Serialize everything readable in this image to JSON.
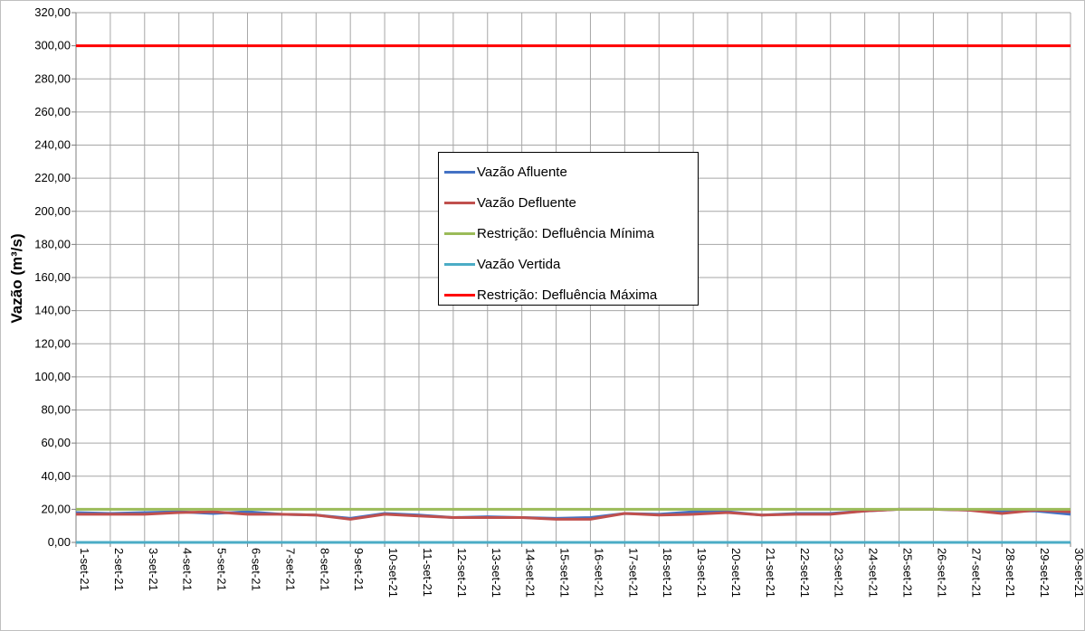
{
  "chart_data": {
    "type": "line",
    "title": "",
    "xlabel": "",
    "ylabel": "Vazão (m³/s)",
    "ylim": [
      0,
      320
    ],
    "ytick_step": 20,
    "ytick_labels": [
      "0,00",
      "20,00",
      "40,00",
      "60,00",
      "80,00",
      "100,00",
      "120,00",
      "140,00",
      "160,00",
      "180,00",
      "200,00",
      "220,00",
      "240,00",
      "260,00",
      "280,00",
      "300,00",
      "320,00"
    ],
    "grid": true,
    "legend_position": "center",
    "categories": [
      "1-set-21",
      "2-set-21",
      "3-set-21",
      "4-set-21",
      "5-set-21",
      "6-set-21",
      "7-set-21",
      "8-set-21",
      "9-set-21",
      "10-set-21",
      "11-set-21",
      "12-set-21",
      "13-set-21",
      "14-set-21",
      "15-set-21",
      "16-set-21",
      "17-set-21",
      "18-set-21",
      "19-set-21",
      "20-set-21",
      "21-set-21",
      "22-set-21",
      "23-set-21",
      "24-set-21",
      "25-set-21",
      "26-set-21",
      "27-set-21",
      "28-set-21",
      "29-set-21",
      "30-set-21"
    ],
    "series": [
      {
        "name": "Vazão Afluente",
        "color": "#4472c4",
        "values": [
          18,
          17.5,
          18,
          18.5,
          17.5,
          18.5,
          17,
          16.5,
          14.5,
          17.5,
          16.5,
          15,
          15.5,
          15,
          14.5,
          15,
          17.5,
          17,
          18.5,
          18.5,
          16.5,
          17.5,
          17.5,
          19,
          20,
          20,
          19.5,
          19,
          19,
          17
        ]
      },
      {
        "name": "Vazão Defluente",
        "color": "#c0504d",
        "values": [
          17,
          17,
          17,
          18,
          18.5,
          17,
          17,
          16.5,
          14,
          17,
          16,
          15,
          15,
          15,
          14,
          14,
          17.5,
          16.5,
          17,
          18,
          16.5,
          17,
          17,
          19,
          20,
          20,
          19.5,
          17.5,
          19.5,
          18.5
        ]
      },
      {
        "name": "Restrição: Defluência Mínima",
        "color": "#9bbb59",
        "values": [
          20,
          20,
          20,
          20,
          20,
          20,
          20,
          20,
          20,
          20,
          20,
          20,
          20,
          20,
          20,
          20,
          20,
          20,
          20,
          20,
          20,
          20,
          20,
          20,
          20,
          20,
          20,
          20,
          20,
          20
        ]
      },
      {
        "name": "Vazão Vertida",
        "color": "#4bacc6",
        "values": [
          0,
          0,
          0,
          0,
          0,
          0,
          0,
          0,
          0,
          0,
          0,
          0,
          0,
          0,
          0,
          0,
          0,
          0,
          0,
          0,
          0,
          0,
          0,
          0,
          0,
          0,
          0,
          0,
          0,
          0
        ]
      },
      {
        "name": "Restrição: Defluência Máxima",
        "color": "#ff0000",
        "values": [
          300,
          300,
          300,
          300,
          300,
          300,
          300,
          300,
          300,
          300,
          300,
          300,
          300,
          300,
          300,
          300,
          300,
          300,
          300,
          300,
          300,
          300,
          300,
          300,
          300,
          300,
          300,
          300,
          300,
          300
        ]
      }
    ]
  }
}
